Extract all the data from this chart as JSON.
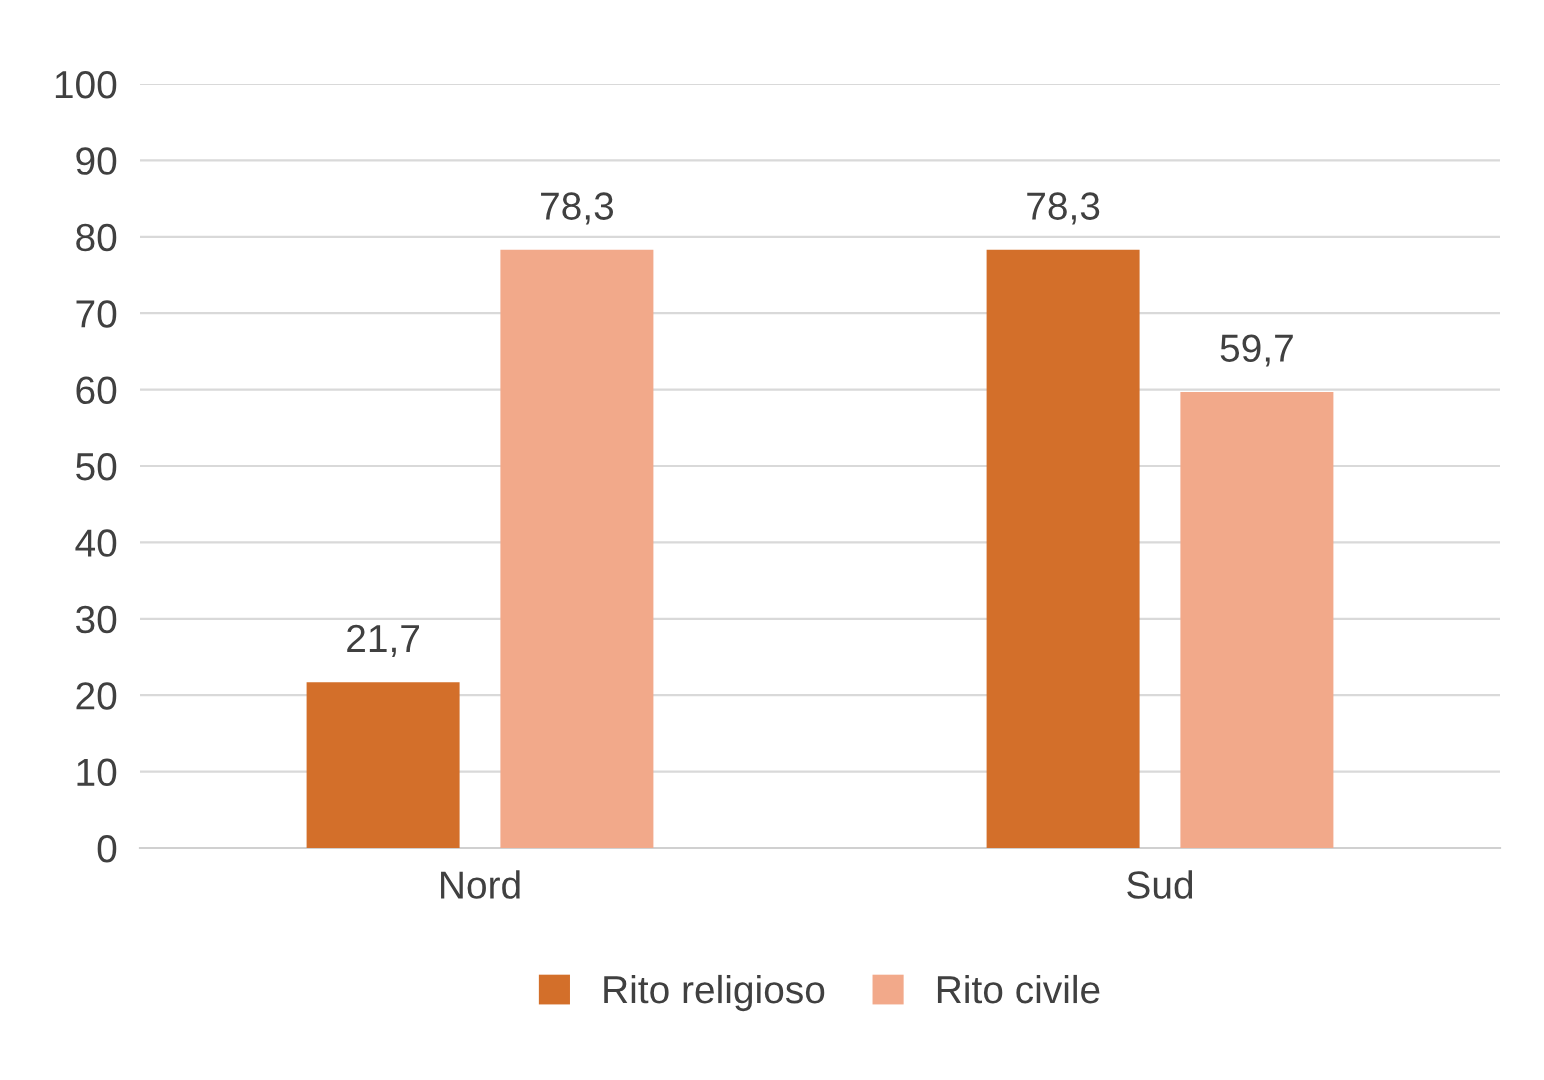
{
  "chart_data": {
    "type": "bar",
    "categories": [
      "Nord",
      "Sud"
    ],
    "series": [
      {
        "name": "Rito religioso",
        "color": "#d36f2a",
        "values": [
          21.7,
          78.3
        ],
        "value_labels": [
          "21,7",
          "78,3"
        ]
      },
      {
        "name": "Rito civile",
        "color": "#f2a98a",
        "values": [
          78.3,
          59.7
        ],
        "value_labels": [
          "78,3",
          "59,7"
        ]
      }
    ],
    "ylim": [
      0,
      100
    ],
    "yticks": [
      0,
      10,
      20,
      30,
      40,
      50,
      60,
      70,
      80,
      90,
      100
    ],
    "grid": "y",
    "legend": "bottom"
  }
}
